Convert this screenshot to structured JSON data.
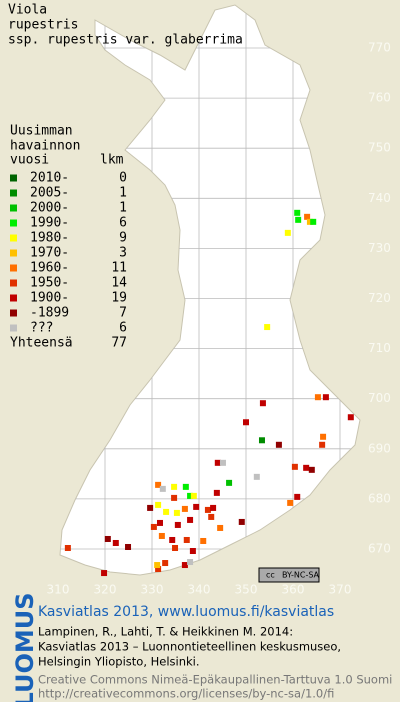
{
  "title": [
    "Viola",
    "rupestris",
    "ssp. rupestris var. glaberrima"
  ],
  "legend": {
    "header": [
      "Uusimman",
      "havainnon",
      "vuosi"
    ],
    "count_header": "lkm",
    "rows": [
      {
        "label": "2010-",
        "count": 0,
        "color": "#006400"
      },
      {
        "label": "2005-",
        "count": 1,
        "color": "#008c00"
      },
      {
        "label": "2000-",
        "count": 1,
        "color": "#00c000"
      },
      {
        "label": "1990-",
        "count": 6,
        "color": "#00ee00"
      },
      {
        "label": "1980-",
        "count": 9,
        "color": "#ffff00"
      },
      {
        "label": "1970-",
        "count": 3,
        "color": "#ffc000"
      },
      {
        "label": "1960-",
        "count": 11,
        "color": "#ff7000"
      },
      {
        "label": "1950-",
        "count": 14,
        "color": "#e03000"
      },
      {
        "label": "1900-",
        "count": 19,
        "color": "#c00000"
      },
      {
        "label": "-1899",
        "count": 7,
        "color": "#900000"
      },
      {
        "label": "???",
        "count": 6,
        "color": "#c0c0c0"
      }
    ],
    "total_label": "Yhteensä",
    "total": 77
  },
  "grid": {
    "xticks": [
      310,
      320,
      330,
      340,
      350,
      360,
      370
    ],
    "yticks": [
      670,
      680,
      690,
      700,
      710,
      720,
      730,
      740,
      750,
      760,
      770
    ]
  },
  "points": [
    {
      "x": 360.9,
      "y": 737.1,
      "legend_row": 3
    },
    {
      "x": 361.1,
      "y": 735.7,
      "legend_row": 3
    },
    {
      "x": 363,
      "y": 736.3,
      "legend_row": 6
    },
    {
      "x": 363.6,
      "y": 735.3,
      "legend_row": 5
    },
    {
      "x": 364.3,
      "y": 735.3,
      "legend_row": 3
    },
    {
      "x": 358.9,
      "y": 733.1,
      "legend_row": 4
    },
    {
      "x": 354.5,
      "y": 714.3,
      "legend_row": 4
    },
    {
      "x": 353.6,
      "y": 699.1,
      "legend_row": 8
    },
    {
      "x": 365.3,
      "y": 700.3,
      "legend_row": 6
    },
    {
      "x": 367,
      "y": 700.3,
      "legend_row": 8
    },
    {
      "x": 372.3,
      "y": 696.3,
      "legend_row": 8
    },
    {
      "x": 350,
      "y": 695.3,
      "legend_row": 8
    },
    {
      "x": 353.4,
      "y": 691.7,
      "legend_row": 1
    },
    {
      "x": 357,
      "y": 690.8,
      "legend_row": 9
    },
    {
      "x": 366.4,
      "y": 692.4,
      "legend_row": 6
    },
    {
      "x": 366.2,
      "y": 690.8,
      "legend_row": 7
    },
    {
      "x": 362.8,
      "y": 686.2,
      "legend_row": 8
    },
    {
      "x": 364,
      "y": 685.8,
      "legend_row": 9
    },
    {
      "x": 360.4,
      "y": 686.4,
      "legend_row": 7
    },
    {
      "x": 352.3,
      "y": 684.4,
      "legend_row": 10
    },
    {
      "x": 344,
      "y": 687.2,
      "legend_row": 8
    },
    {
      "x": 345.1,
      "y": 687.2,
      "legend_row": 10
    },
    {
      "x": 346.4,
      "y": 683.2,
      "legend_row": 2
    },
    {
      "x": 343.8,
      "y": 681.2,
      "legend_row": 8
    },
    {
      "x": 360.9,
      "y": 680.4,
      "legend_row": 8
    },
    {
      "x": 359.4,
      "y": 679.2,
      "legend_row": 6
    },
    {
      "x": 349.1,
      "y": 675.4,
      "legend_row": 9
    },
    {
      "x": 331.3,
      "y": 682.8,
      "legend_row": 6
    },
    {
      "x": 332.3,
      "y": 682,
      "legend_row": 10
    },
    {
      "x": 334.7,
      "y": 682.4,
      "legend_row": 4
    },
    {
      "x": 337.2,
      "y": 682.4,
      "legend_row": 3
    },
    {
      "x": 338.1,
      "y": 680.6,
      "legend_row": 3
    },
    {
      "x": 338.9,
      "y": 680.6,
      "legend_row": 4
    },
    {
      "x": 334.7,
      "y": 680.2,
      "legend_row": 7
    },
    {
      "x": 331.3,
      "y": 678.8,
      "legend_row": 4
    },
    {
      "x": 333,
      "y": 677.4,
      "legend_row": 4
    },
    {
      "x": 335.3,
      "y": 677.2,
      "legend_row": 4
    },
    {
      "x": 337,
      "y": 678,
      "legend_row": 6
    },
    {
      "x": 338.1,
      "y": 675.8,
      "legend_row": 8
    },
    {
      "x": 339.4,
      "y": 678.4,
      "legend_row": 8
    },
    {
      "x": 341.9,
      "y": 677.8,
      "legend_row": 7
    },
    {
      "x": 343,
      "y": 678.2,
      "legend_row": 8
    },
    {
      "x": 342.6,
      "y": 676.4,
      "legend_row": 7
    },
    {
      "x": 331.7,
      "y": 675.2,
      "legend_row": 8
    },
    {
      "x": 335.5,
      "y": 674.8,
      "legend_row": 8
    },
    {
      "x": 329.6,
      "y": 678.2,
      "legend_row": 9
    },
    {
      "x": 330.4,
      "y": 674.4,
      "legend_row": 7
    },
    {
      "x": 332.1,
      "y": 672.6,
      "legend_row": 6
    },
    {
      "x": 334.3,
      "y": 671.8,
      "legend_row": 8
    },
    {
      "x": 337.4,
      "y": 671.8,
      "legend_row": 7
    },
    {
      "x": 334.9,
      "y": 670.2,
      "legend_row": 7
    },
    {
      "x": 338.7,
      "y": 669.6,
      "legend_row": 8
    },
    {
      "x": 340.9,
      "y": 671.6,
      "legend_row": 6
    },
    {
      "x": 344.5,
      "y": 674.2,
      "legend_row": 6
    },
    {
      "x": 322.3,
      "y": 671.2,
      "legend_row": 8
    },
    {
      "x": 324.9,
      "y": 670.4,
      "legend_row": 9
    },
    {
      "x": 312.1,
      "y": 670.2,
      "legend_row": 7
    },
    {
      "x": 319.8,
      "y": 665.2,
      "legend_row": 8
    },
    {
      "x": 331.3,
      "y": 666,
      "legend_row": 7
    },
    {
      "x": 331.1,
      "y": 666.8,
      "legend_row": 5
    },
    {
      "x": 332.8,
      "y": 667.2,
      "legend_row": 7
    },
    {
      "x": 337,
      "y": 666.8,
      "legend_row": 8
    },
    {
      "x": 338.1,
      "y": 667.4,
      "legend_row": 10
    },
    {
      "x": 320.6,
      "y": 672,
      "legend_row": 9
    }
  ],
  "license_badge": {
    "cc": "cc",
    "text": "BY-NC-SA"
  },
  "footer": {
    "logo": "LUOMUS",
    "heading": "Kasviatlas 2013, www.luomus.fi/kasviatlas",
    "citation": [
      "Lampinen, R., Lahti, T. & Heikkinen M. 2014:",
      "Kasviatlas 2013 – Luonnontieteellinen keskusmuseo,",
      "Helsingin Yliopisto, Helsinki."
    ],
    "license": [
      "Creative Commons Nimeä-Epäkaupallinen-Tarttuva 1.0 Suomi",
      "http://creativecommons.org/licenses/by-nc-sa/1.0/fi"
    ]
  }
}
